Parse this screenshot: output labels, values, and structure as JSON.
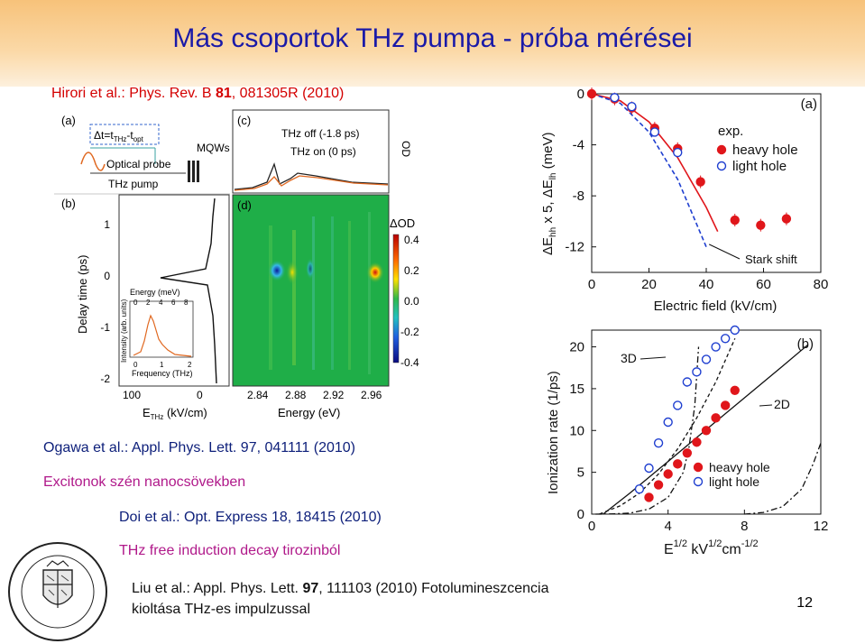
{
  "slide": {
    "title": "Más csoportok THz pumpa - próba mérései",
    "page_number": "12"
  },
  "refs": {
    "hirori": {
      "authors": "Hirori et al.: Phys. Rev. B ",
      "vol": "81",
      "rest": ", 081305R (2010)"
    },
    "ogawa": {
      "authors": "Ogawa et al.: Appl. Phys. Lett. ",
      "vol": "97",
      "rest": ", 041111 (2010)",
      "note": "Excitonok szén nanocsövekben"
    },
    "doi": {
      "authors": "Doi et al.: Opt. Express ",
      "vol": "18",
      "rest": ", 18415 (2010)",
      "note": "THz free induction decay tirozinból"
    },
    "liu": {
      "authors": "Liu et al.: Appl. Phys. Lett. ",
      "vol": "97",
      "rest": ", 111103 (2010) Fotolumineszcencia",
      "line2": "kioltása THz-es impulzussal"
    }
  },
  "left_figure": {
    "panel_a": {
      "label": "(a)",
      "delta_t": "Δt=t",
      "thz_sub": "THz",
      "minus_t": "-t",
      "opt_sub": "opt",
      "mqws": "MQWs",
      "optical_probe": "Optical probe",
      "thz_pump": "THz pump"
    },
    "panel_b": {
      "label": "(b)",
      "y_label": "Delay time (ps)",
      "y_ticks": [
        "1",
        "0",
        "-1",
        "-2"
      ],
      "x_ticks": [
        "100",
        "0"
      ],
      "x_label_main": "E",
      "x_label_sub": "THz",
      "x_label_unit": " (kV/cm)",
      "inset": {
        "top_label": "Energy (meV)",
        "top_ticks": [
          "0",
          "2",
          "4",
          "6",
          "8"
        ],
        "bottom_ticks": [
          "0",
          "1",
          "2"
        ],
        "bottom_label": "Frequency (THz)",
        "y_label": "Intensity (arb. units)"
      }
    },
    "panel_c": {
      "label": "(c)",
      "thz_off": "THz off (-1.8 ps)",
      "thz_on": "THz on (0 ps)",
      "y_label": "OD"
    },
    "panel_d": {
      "label": "(d)",
      "x_ticks": [
        "2.84",
        "2.88",
        "2.92",
        "2.96"
      ],
      "x_label": "Energy (eV)",
      "colorbar_title": "ΔOD",
      "colorbar_ticks": [
        "0.4",
        "0.2",
        "0.0",
        "-0.2",
        "-0.4"
      ]
    }
  },
  "chart_data": [
    {
      "type": "scatter",
      "panel": "(a)",
      "xlabel": "Electric field (kV/cm)",
      "ylabel_parts": [
        "ΔE",
        "hh",
        " x 5, ΔE",
        "lh",
        " (meV)"
      ],
      "xlim": [
        0,
        80
      ],
      "ylim": [
        -14,
        0
      ],
      "x_ticks": [
        0,
        20,
        40,
        60,
        80
      ],
      "y_ticks": [
        0,
        -4,
        -8,
        -12
      ],
      "legend_title": "exp.",
      "legend_position": "top-right",
      "annotation": "Stark shift",
      "series": [
        {
          "name": "heavy hole",
          "color": "#e0161b",
          "marker": "filled-circle",
          "x": [
            0,
            8,
            14,
            22,
            30,
            38,
            50,
            59,
            68
          ],
          "y": [
            0,
            -0.4,
            -1.1,
            -2.7,
            -4.3,
            -6.9,
            -9.9,
            -10.3,
            -9.8
          ]
        },
        {
          "name": "light hole",
          "color": "#1f3fd0",
          "marker": "open-circle",
          "x": [
            8,
            14,
            22,
            30
          ],
          "y": [
            -0.3,
            -1.0,
            -3.0,
            -4.6
          ]
        }
      ],
      "fit_curves": [
        {
          "style": "solid",
          "color": "#e0161b",
          "x": [
            0,
            10,
            20,
            30,
            40,
            44
          ],
          "y": [
            0,
            -0.55,
            -2.2,
            -5.0,
            -8.9,
            -10.8
          ]
        },
        {
          "style": "dashed",
          "color": "#1f3fd0",
          "x": [
            0,
            10,
            20,
            30,
            40
          ],
          "y": [
            0,
            -0.75,
            -3.0,
            -6.7,
            -12.0
          ]
        }
      ]
    },
    {
      "type": "scatter",
      "panel": "(b)",
      "ylabel": "Ionization rate (1/ps)",
      "xlabel_parts": [
        "E",
        "1/2",
        " kV",
        "1/2",
        "cm",
        "-1/2"
      ],
      "xlim": [
        0,
        12
      ],
      "ylim": [
        0,
        22
      ],
      "x_ticks": [
        0,
        4,
        8,
        12
      ],
      "y_ticks": [
        0,
        5,
        10,
        15,
        20
      ],
      "legend_position": "bottom-right",
      "curve_labels": [
        "3D",
        "2D"
      ],
      "series": [
        {
          "name": "heavy hole",
          "color": "#e0161b",
          "marker": "filled-circle",
          "x": [
            3.0,
            3.5,
            4.0,
            4.5,
            5.0,
            5.5,
            6.0,
            6.5,
            7.0,
            7.5
          ],
          "y": [
            2.0,
            3.5,
            4.8,
            6.0,
            7.3,
            8.6,
            10.0,
            11.5,
            13.0,
            14.8
          ]
        },
        {
          "name": "light hole",
          "color": "#1f3fd0",
          "marker": "open-circle",
          "x": [
            2.5,
            3.0,
            3.5,
            4.0,
            4.5,
            5.0,
            5.5,
            6.0,
            6.5,
            7.0,
            7.5
          ],
          "y": [
            3.0,
            5.5,
            8.5,
            11.0,
            13.0,
            15.8,
            17.0,
            18.5,
            20.0,
            21.0,
            22.0
          ]
        }
      ],
      "fit_curves": [
        {
          "label": "3D",
          "style": "dash-dot",
          "x": [
            0.2,
            1,
            2,
            3,
            4,
            4.8,
            5.1,
            5.4,
            5.6
          ],
          "y": [
            0,
            0.02,
            0.12,
            0.6,
            2.0,
            5.0,
            8.0,
            13.0,
            20.0
          ]
        },
        {
          "label": "2D",
          "style": "solid",
          "x": [
            0.6,
            2,
            4,
            6,
            8,
            10,
            11.3
          ],
          "y": [
            0,
            2.5,
            6.3,
            10.1,
            13.9,
            17.7,
            20.2
          ]
        },
        {
          "label": "",
          "style": "dash-dot",
          "x": [
            8,
            9,
            10,
            11,
            11.6,
            12
          ],
          "y": [
            0,
            0.2,
            0.9,
            3.0,
            6.0,
            8.5
          ]
        },
        {
          "label": "",
          "style": "dashed",
          "x": [
            0.4,
            1.5,
            2.5,
            3.5,
            4.5,
            5.5,
            6.5,
            7.5
          ],
          "y": [
            0,
            1.0,
            2.5,
            4.8,
            7.8,
            11.5,
            15.8,
            21.0
          ]
        }
      ]
    }
  ],
  "logo": {
    "text": "UNIVERSITAS QUINQUEECCLESIENSIS",
    "year_left": "13",
    "year_right": "67"
  }
}
